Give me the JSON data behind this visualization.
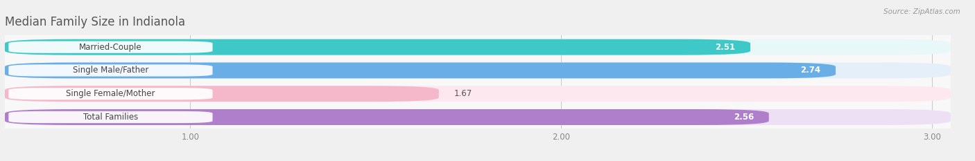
{
  "title": "Median Family Size in Indianola",
  "source": "Source: ZipAtlas.com",
  "categories": [
    "Married-Couple",
    "Single Male/Father",
    "Single Female/Mother",
    "Total Families"
  ],
  "values": [
    2.51,
    2.74,
    1.67,
    2.56
  ],
  "bar_colors": [
    "#3ec8c8",
    "#6aaee8",
    "#f5b8cb",
    "#b07fcc"
  ],
  "bar_bg_colors": [
    "#e8f7f7",
    "#e4eff9",
    "#fde8ef",
    "#ede0f5"
  ],
  "value_inside": [
    true,
    true,
    false,
    true
  ],
  "xlim_left": 0.5,
  "xlim_right": 3.05,
  "xticks": [
    1.0,
    2.0,
    3.0
  ],
  "xlabel_labels": [
    "1.00",
    "2.00",
    "3.00"
  ],
  "label_fontsize": 8.5,
  "value_fontsize": 8.5,
  "title_fontsize": 12,
  "background_color": "#f0f0f0",
  "bar_area_bg": "#f8f8f8"
}
